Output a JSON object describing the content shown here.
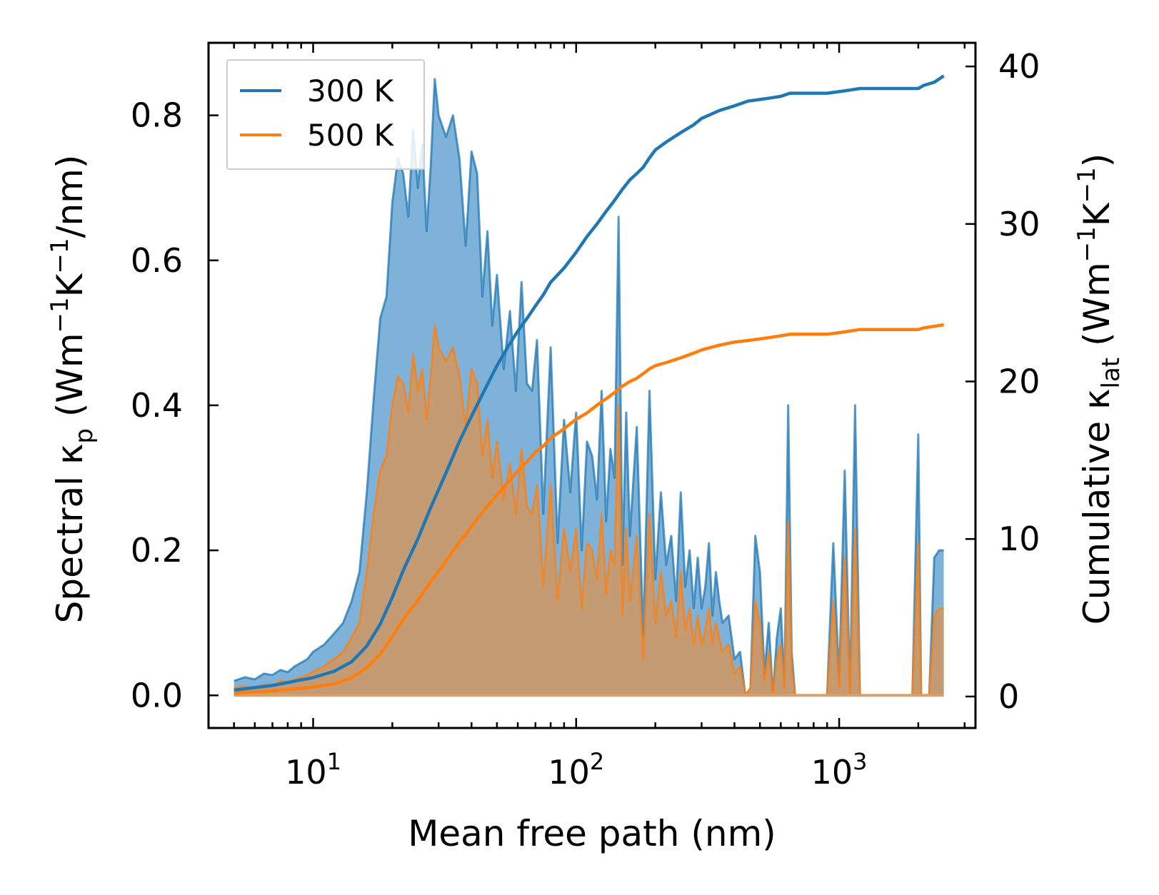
{
  "chart_data": {
    "type": "line",
    "xlabel": "Mean free path (nm)",
    "xscale": "log",
    "xlim": [
      4.0,
      3300
    ],
    "x_ticks": [
      {
        "value": 10,
        "base": "10",
        "exp": "1"
      },
      {
        "value": 100,
        "base": "10",
        "exp": "2"
      },
      {
        "value": 1000,
        "base": "10",
        "exp": "3"
      }
    ],
    "ylabel_left": {
      "main": "Spectral κ",
      "sub": "p",
      "unit_prefix": " (Wm",
      "sup1": "−1",
      "unit_mid": "K",
      "sup2": "−1",
      "unit_suffix": "/nm)"
    },
    "ylim_left": [
      -0.045,
      0.9
    ],
    "y_ticks_left": [
      0.0,
      0.2,
      0.4,
      0.6,
      0.8
    ],
    "y_tick_labels_left": [
      "0.0",
      "0.2",
      "0.4",
      "0.6",
      "0.8"
    ],
    "ylabel_right": {
      "main": "Cumulative κ",
      "sub": "lat",
      "unit_prefix": " (Wm",
      "sup1": "−1",
      "unit_mid": "K",
      "sup2": "−1",
      "unit_suffix": ")"
    },
    "ylim_right": [
      -2,
      41.5
    ],
    "y_ticks_right": [
      0,
      10,
      20,
      30,
      40
    ],
    "y_tick_labels_right": [
      "0",
      "10",
      "20",
      "30",
      "40"
    ],
    "legend": {
      "position": "top-left",
      "entries": [
        "300 K",
        "500 K"
      ]
    },
    "colors": {
      "300 K": "#1f77b4",
      "500 K": "#ff7f0e",
      "fill_300": "#7fb2d9",
      "fill_500": "#c49b72"
    },
    "spectral_x": [
      5,
      5.5,
      6,
      6.5,
      7,
      7.5,
      8,
      8.5,
      9,
      9.5,
      10,
      11,
      12,
      13,
      14,
      15,
      16,
      17,
      18,
      19,
      20,
      21,
      22,
      23,
      24,
      25,
      26,
      27,
      28,
      29,
      30,
      32,
      34,
      36,
      38,
      40,
      42,
      44,
      46,
      48,
      50,
      53,
      56,
      59,
      62,
      65,
      68,
      71,
      75,
      80,
      85,
      90,
      95,
      100,
      105,
      110,
      115,
      120,
      125,
      130,
      135,
      140,
      145,
      150,
      155,
      160,
      170,
      180,
      190,
      200,
      210,
      220,
      230,
      240,
      250,
      260,
      270,
      280,
      290,
      300,
      310,
      320,
      330,
      340,
      350,
      360,
      380,
      400,
      420,
      440,
      460,
      480,
      500,
      520,
      540,
      560,
      580,
      600,
      620,
      640,
      660,
      680,
      700,
      720,
      750,
      800,
      850,
      900,
      950,
      1000,
      1050,
      1100,
      1150,
      1200,
      1300,
      1500,
      1700,
      1900,
      2000,
      2050,
      2100,
      2200,
      2300,
      2400,
      2500
    ],
    "spectral_300": [
      0.02,
      0.025,
      0.022,
      0.03,
      0.028,
      0.035,
      0.032,
      0.04,
      0.045,
      0.05,
      0.06,
      0.07,
      0.085,
      0.1,
      0.13,
      0.17,
      0.28,
      0.41,
      0.52,
      0.55,
      0.68,
      0.74,
      0.72,
      0.66,
      0.78,
      0.7,
      0.76,
      0.64,
      0.73,
      0.85,
      0.8,
      0.77,
      0.8,
      0.74,
      0.62,
      0.75,
      0.72,
      0.55,
      0.64,
      0.51,
      0.58,
      0.45,
      0.53,
      0.42,
      0.57,
      0.43,
      0.42,
      0.49,
      0.25,
      0.48,
      0.21,
      0.38,
      0.28,
      0.39,
      0.2,
      0.35,
      0.33,
      0.27,
      0.42,
      0.24,
      0.34,
      0.3,
      0.66,
      0.18,
      0.39,
      0.22,
      0.37,
      0.08,
      0.42,
      0.16,
      0.28,
      0.18,
      0.22,
      0.13,
      0.28,
      0.15,
      0.2,
      0.12,
      0.19,
      0.12,
      0.15,
      0.21,
      0.11,
      0.17,
      0.13,
      0.1,
      0.11,
      0.05,
      0.06,
      0.0,
      0.01,
      0.22,
      0.17,
      0.03,
      0.1,
      0.0,
      0.08,
      0.12,
      0.01,
      0.4,
      0.06,
      0.0,
      0.0,
      0.0,
      0.0,
      0.0,
      0.0,
      0.0,
      0.21,
      0.02,
      0.31,
      0.0,
      0.4,
      0.0,
      0.0,
      0.0,
      0.0,
      0.0,
      0.36,
      0.0,
      0.0,
      0.0,
      0.19,
      0.2,
      0.2
    ],
    "spectral_500": [
      0.01,
      0.012,
      0.01,
      0.015,
      0.013,
      0.02,
      0.018,
      0.022,
      0.025,
      0.028,
      0.033,
      0.04,
      0.05,
      0.06,
      0.08,
      0.1,
      0.17,
      0.25,
      0.31,
      0.33,
      0.4,
      0.44,
      0.43,
      0.39,
      0.47,
      0.42,
      0.45,
      0.38,
      0.44,
      0.51,
      0.48,
      0.46,
      0.48,
      0.44,
      0.37,
      0.45,
      0.43,
      0.33,
      0.38,
      0.3,
      0.35,
      0.27,
      0.32,
      0.25,
      0.34,
      0.26,
      0.25,
      0.29,
      0.15,
      0.29,
      0.13,
      0.23,
      0.17,
      0.23,
      0.12,
      0.21,
      0.2,
      0.16,
      0.25,
      0.14,
      0.2,
      0.18,
      0.4,
      0.11,
      0.23,
      0.13,
      0.22,
      0.05,
      0.25,
      0.1,
      0.17,
      0.11,
      0.13,
      0.08,
      0.17,
      0.09,
      0.12,
      0.07,
      0.11,
      0.07,
      0.09,
      0.12,
      0.07,
      0.1,
      0.08,
      0.06,
      0.07,
      0.03,
      0.04,
      0.0,
      0.01,
      0.13,
      0.1,
      0.02,
      0.06,
      0.0,
      0.05,
      0.07,
      0.01,
      0.24,
      0.04,
      0.0,
      0.0,
      0.0,
      0.0,
      0.0,
      0.0,
      0.0,
      0.13,
      0.01,
      0.19,
      0.0,
      0.23,
      0.0,
      0.0,
      0.0,
      0.0,
      0.0,
      0.21,
      0.0,
      0.0,
      0.0,
      0.11,
      0.12,
      0.12
    ],
    "cumulative_x": [
      5,
      7,
      10,
      12,
      14,
      16,
      18,
      20,
      22,
      25,
      28,
      32,
      36,
      40,
      45,
      50,
      55,
      60,
      65,
      70,
      75,
      80,
      90,
      100,
      110,
      120,
      130,
      140,
      150,
      160,
      170,
      180,
      190,
      200,
      220,
      250,
      280,
      300,
      350,
      400,
      450,
      500,
      550,
      600,
      650,
      700,
      800,
      900,
      1000,
      1100,
      1200,
      1500,
      2000,
      2100,
      2300,
      2500
    ],
    "cumulative_300": [
      0.4,
      0.7,
      1.2,
      1.6,
      2.2,
      3.2,
      4.6,
      6.3,
      8.0,
      10.0,
      12.0,
      14.2,
      16.2,
      17.8,
      19.5,
      21.0,
      22.2,
      23.2,
      24.0,
      24.8,
      25.5,
      26.3,
      27.2,
      28.2,
      29.2,
      30.0,
      30.8,
      31.5,
      32.2,
      32.8,
      33.2,
      33.6,
      34.2,
      34.7,
      35.2,
      35.8,
      36.3,
      36.7,
      37.2,
      37.5,
      37.8,
      37.9,
      38.0,
      38.1,
      38.3,
      38.3,
      38.3,
      38.3,
      38.4,
      38.5,
      38.6,
      38.6,
      38.6,
      38.8,
      39.0,
      39.4
    ],
    "cumulative_500": [
      0.2,
      0.35,
      0.6,
      0.8,
      1.2,
      1.8,
      2.7,
      3.8,
      4.9,
      6.1,
      7.3,
      8.6,
      9.8,
      10.8,
      11.9,
      12.8,
      13.6,
      14.3,
      14.9,
      15.5,
      15.9,
      16.4,
      17.0,
      17.6,
      18.0,
      18.5,
      18.9,
      19.3,
      19.7,
      20.0,
      20.2,
      20.5,
      20.8,
      21.0,
      21.2,
      21.5,
      21.8,
      22.0,
      22.3,
      22.5,
      22.6,
      22.7,
      22.8,
      22.9,
      23.0,
      23.0,
      23.0,
      23.0,
      23.1,
      23.2,
      23.3,
      23.3,
      23.3,
      23.4,
      23.5,
      23.6
    ]
  }
}
